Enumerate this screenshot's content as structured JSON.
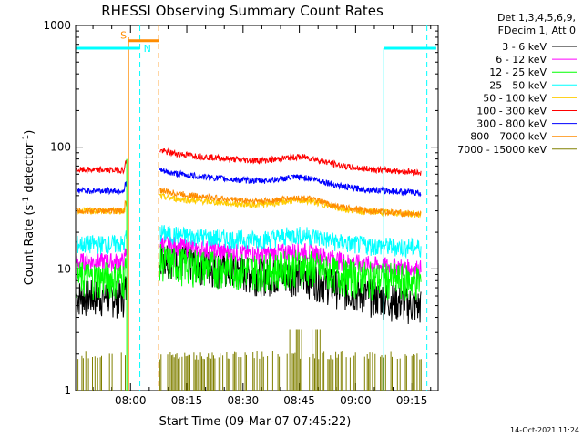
{
  "chart_data": {
    "type": "line",
    "title": "RHESSI Observing Summary Count Rates",
    "xlabel": "Start Time (09-Mar-07 07:45:22)",
    "ylabel_main": "Count Rate (s",
    "ylabel_sup1": "-1",
    "ylabel_mid": " detector",
    "ylabel_sup2": "-1",
    "ylabel_end": ")",
    "yscale": "log",
    "ylim": [
      1,
      1000
    ],
    "xlim_minutes": [
      465.37,
      562.0
    ],
    "xtick_labels": [
      "08:00",
      "08:15",
      "08:30",
      "08:45",
      "09:00",
      "09:15"
    ],
    "xtick_minutes": [
      480,
      495,
      510,
      525,
      540,
      555
    ],
    "ytick_labels": [
      "1",
      "10",
      "100",
      "1000"
    ],
    "ytick_values": [
      1,
      10,
      100,
      1000
    ],
    "legend_header": [
      "Det 1,3,4,5,6,9,",
      "FDecim 1, Att 0"
    ],
    "legend_position": "right",
    "data_gap_minutes": [
      479.0,
      487.5
    ],
    "series": [
      {
        "name": "3 - 6 keV",
        "color": "#000000",
        "before_gap": 6,
        "after_start": 14,
        "after_end": 5
      },
      {
        "name": "6 - 12 keV",
        "color": "#ff00ff",
        "before_gap": 11.5,
        "after_start": 17,
        "after_end": 10
      },
      {
        "name": "12 - 25 keV",
        "color": "#00ff00",
        "before_gap": 8.5,
        "after_start": 12,
        "after_end": 8
      },
      {
        "name": "25 - 50 keV",
        "color": "#00ffff",
        "before_gap": 16,
        "after_start": 20,
        "after_end": 15
      },
      {
        "name": "50 - 100 keV",
        "color": "#ffcc00",
        "before_gap": 30,
        "after_start": 40,
        "after_end": 28
      },
      {
        "name": "100 - 300 keV",
        "color": "#ff0000",
        "before_gap": 65,
        "after_start": 95,
        "after_end": 62
      },
      {
        "name": "300 - 800 keV",
        "color": "#0000ff",
        "before_gap": 44,
        "after_start": 65,
        "after_end": 42
      },
      {
        "name": "800 - 7000 keV",
        "color": "#ff8c00",
        "before_gap": 30,
        "after_start": 45,
        "after_end": 28
      },
      {
        "name": "7000 - 15000 keV",
        "color": "#808000",
        "before_gap": 1.8,
        "after_start": 1.8,
        "after_end": 1.8
      }
    ],
    "flags": {
      "saa": {
        "label": "S",
        "color": "#ff8c00",
        "level": 750
      },
      "night": {
        "label": "N",
        "color": "#00ffff",
        "level": 650
      }
    }
  },
  "timestamp": "14-Oct-2021 11:24"
}
